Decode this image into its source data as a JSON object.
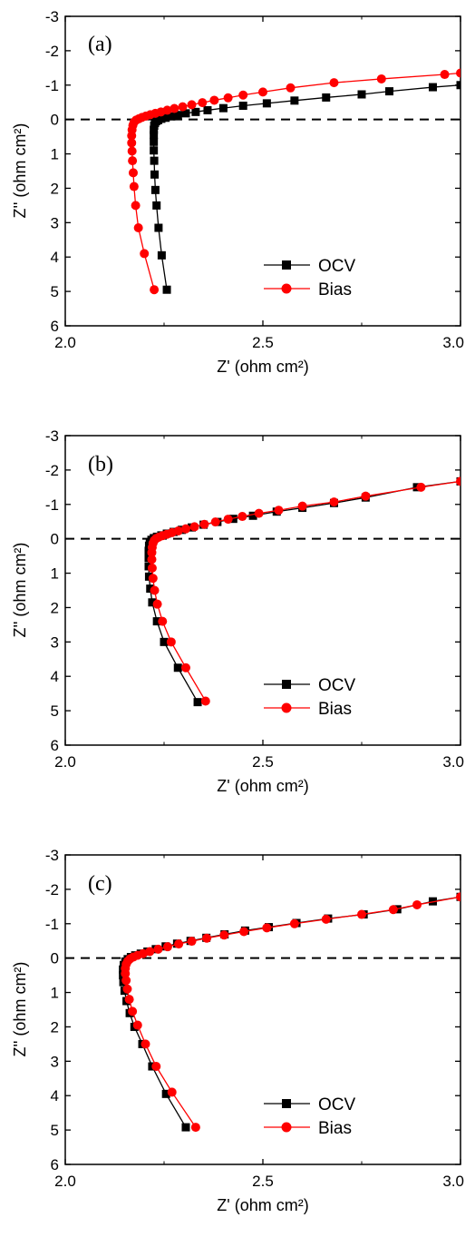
{
  "chart_data": [
    {
      "type": "line",
      "panel_label": "(a)",
      "xlabel": "Z' (ohm cm²)",
      "ylabel": "Z'' (ohm cm²)",
      "xlim": [
        2.0,
        3.0
      ],
      "ylim": [
        -3,
        6
      ],
      "y_inverted": true,
      "xticks": [
        "2.0",
        "2.5",
        "3.0"
      ],
      "yticks": [
        "-3",
        "-2",
        "-1",
        "0",
        "1",
        "2",
        "3",
        "4",
        "5",
        "6"
      ],
      "reference_line": 0,
      "legend": "lower-right",
      "series": [
        {
          "name": "OCV",
          "color": "#000000",
          "marker": "square",
          "x": [
            2.257,
            2.244,
            2.236,
            2.231,
            2.228,
            2.226,
            2.225,
            2.224,
            2.224,
            2.224,
            2.224,
            2.225,
            2.227,
            2.23,
            2.235,
            2.243,
            2.254,
            2.268,
            2.285,
            2.305,
            2.33,
            2.36,
            2.4,
            2.45,
            2.51,
            2.58,
            2.66,
            2.75,
            2.82,
            2.93,
            3.0
          ],
          "y": [
            4.95,
            3.95,
            3.15,
            2.5,
            2.05,
            1.6,
            1.2,
            0.9,
            0.65,
            0.45,
            0.3,
            0.18,
            0.1,
            0.05,
            0.02,
            -0.02,
            -0.05,
            -0.09,
            -0.13,
            -0.18,
            -0.22,
            -0.27,
            -0.33,
            -0.4,
            -0.47,
            -0.55,
            -0.64,
            -0.73,
            -0.82,
            -0.94,
            -1.0
          ]
        },
        {
          "name": "Bias",
          "color": "#ff0000",
          "marker": "circle",
          "x": [
            2.225,
            2.2,
            2.185,
            2.178,
            2.174,
            2.172,
            2.17,
            2.169,
            2.168,
            2.168,
            2.169,
            2.171,
            2.174,
            2.179,
            2.186,
            2.194,
            2.204,
            2.215,
            2.228,
            2.242,
            2.258,
            2.276,
            2.297,
            2.32,
            2.347,
            2.377,
            2.412,
            2.45,
            2.5,
            2.57,
            2.68,
            2.8,
            2.96,
            3.0
          ],
          "y": [
            4.95,
            3.9,
            3.15,
            2.5,
            1.95,
            1.55,
            1.2,
            0.92,
            0.68,
            0.47,
            0.3,
            0.17,
            0.08,
            0.02,
            -0.02,
            -0.06,
            -0.1,
            -0.14,
            -0.18,
            -0.22,
            -0.27,
            -0.32,
            -0.37,
            -0.43,
            -0.49,
            -0.56,
            -0.63,
            -0.71,
            -0.8,
            -0.92,
            -1.07,
            -1.18,
            -1.31,
            -1.35
          ]
        }
      ]
    },
    {
      "type": "line",
      "panel_label": "(b)",
      "xlabel": "Z' (ohm cm²)",
      "ylabel": "Z'' (ohm cm²)",
      "xlim": [
        2.0,
        3.0
      ],
      "ylim": [
        -3,
        6
      ],
      "y_inverted": true,
      "xticks": [
        "2.0",
        "2.5",
        "3.0"
      ],
      "yticks": [
        "-3",
        "-2",
        "-1",
        "0",
        "1",
        "2",
        "3",
        "4",
        "5",
        "6"
      ],
      "reference_line": 0,
      "legend": "lower-right",
      "series": [
        {
          "name": "OCV",
          "color": "#000000",
          "marker": "square",
          "x": [
            2.335,
            2.285,
            2.25,
            2.232,
            2.22,
            2.215,
            2.212,
            2.211,
            2.211,
            2.211,
            2.212,
            2.214,
            2.218,
            2.224,
            2.232,
            2.243,
            2.257,
            2.274,
            2.295,
            2.32,
            2.35,
            2.385,
            2.425,
            2.475,
            2.535,
            2.6,
            2.68,
            2.76,
            2.89,
            3.0
          ],
          "y": [
            4.75,
            3.75,
            3.0,
            2.4,
            1.85,
            1.45,
            1.1,
            0.8,
            0.55,
            0.35,
            0.2,
            0.1,
            0.03,
            -0.02,
            -0.06,
            -0.1,
            -0.15,
            -0.2,
            -0.26,
            -0.33,
            -0.41,
            -0.49,
            -0.58,
            -0.67,
            -0.79,
            -0.9,
            -1.04,
            -1.2,
            -1.5,
            -1.67
          ]
        },
        {
          "name": "Bias",
          "color": "#ff0000",
          "marker": "circle",
          "x": [
            2.355,
            2.305,
            2.268,
            2.246,
            2.233,
            2.226,
            2.222,
            2.22,
            2.219,
            2.219,
            2.22,
            2.222,
            2.225,
            2.23,
            2.237,
            2.246,
            2.257,
            2.27,
            2.286,
            2.305,
            2.327,
            2.352,
            2.38,
            2.412,
            2.448,
            2.49,
            2.54,
            2.6,
            2.68,
            2.76,
            2.9,
            3.0
          ],
          "y": [
            4.72,
            3.75,
            3.0,
            2.4,
            1.9,
            1.5,
            1.15,
            0.85,
            0.6,
            0.4,
            0.25,
            0.13,
            0.05,
            -0.01,
            -0.05,
            -0.09,
            -0.13,
            -0.18,
            -0.23,
            -0.29,
            -0.35,
            -0.42,
            -0.49,
            -0.57,
            -0.65,
            -0.74,
            -0.83,
            -0.95,
            -1.07,
            -1.24,
            -1.5,
            -1.67
          ]
        }
      ]
    },
    {
      "type": "line",
      "panel_label": "(c)",
      "xlabel": "Z' (ohm cm²)",
      "ylabel": "Z'' (ohm cm²)",
      "xlim": [
        2.0,
        3.0
      ],
      "ylim": [
        -3,
        6
      ],
      "y_inverted": true,
      "xticks": [
        "2.0",
        "2.5",
        "3.0"
      ],
      "yticks": [
        "-3",
        "-2",
        "-1",
        "0",
        "1",
        "2",
        "3",
        "4",
        "5",
        "6"
      ],
      "reference_line": 0,
      "legend": "lower-right",
      "series": [
        {
          "name": "OCV",
          "color": "#000000",
          "marker": "square",
          "x": [
            2.305,
            2.255,
            2.22,
            2.195,
            2.175,
            2.163,
            2.155,
            2.15,
            2.147,
            2.146,
            2.146,
            2.148,
            2.152,
            2.158,
            2.166,
            2.177,
            2.191,
            2.208,
            2.229,
            2.254,
            2.283,
            2.317,
            2.357,
            2.403,
            2.455,
            2.515,
            2.585,
            2.665,
            2.755,
            2.84,
            2.93,
            3.0
          ],
          "y": [
            4.92,
            3.95,
            3.15,
            2.5,
            2.0,
            1.6,
            1.25,
            0.95,
            0.7,
            0.5,
            0.33,
            0.2,
            0.1,
            0.03,
            -0.03,
            -0.08,
            -0.13,
            -0.19,
            -0.26,
            -0.34,
            -0.42,
            -0.5,
            -0.59,
            -0.69,
            -0.8,
            -0.9,
            -1.02,
            -1.15,
            -1.27,
            -1.42,
            -1.65,
            -1.78
          ]
        },
        {
          "name": "Bias",
          "color": "#ff0000",
          "marker": "circle",
          "x": [
            2.33,
            2.27,
            2.23,
            2.203,
            2.183,
            2.17,
            2.162,
            2.157,
            2.154,
            2.152,
            2.152,
            2.154,
            2.158,
            2.164,
            2.172,
            2.183,
            2.197,
            2.214,
            2.235,
            2.259,
            2.287,
            2.32,
            2.358,
            2.402,
            2.452,
            2.51,
            2.58,
            2.66,
            2.75,
            2.83,
            2.89,
            3.0
          ],
          "y": [
            4.92,
            3.9,
            3.15,
            2.5,
            1.95,
            1.55,
            1.2,
            0.9,
            0.65,
            0.45,
            0.3,
            0.18,
            0.09,
            0.02,
            -0.03,
            -0.08,
            -0.13,
            -0.19,
            -0.26,
            -0.33,
            -0.41,
            -0.49,
            -0.58,
            -0.67,
            -0.77,
            -0.88,
            -1.0,
            -1.13,
            -1.27,
            -1.41,
            -1.55,
            -1.78
          ]
        }
      ]
    }
  ]
}
